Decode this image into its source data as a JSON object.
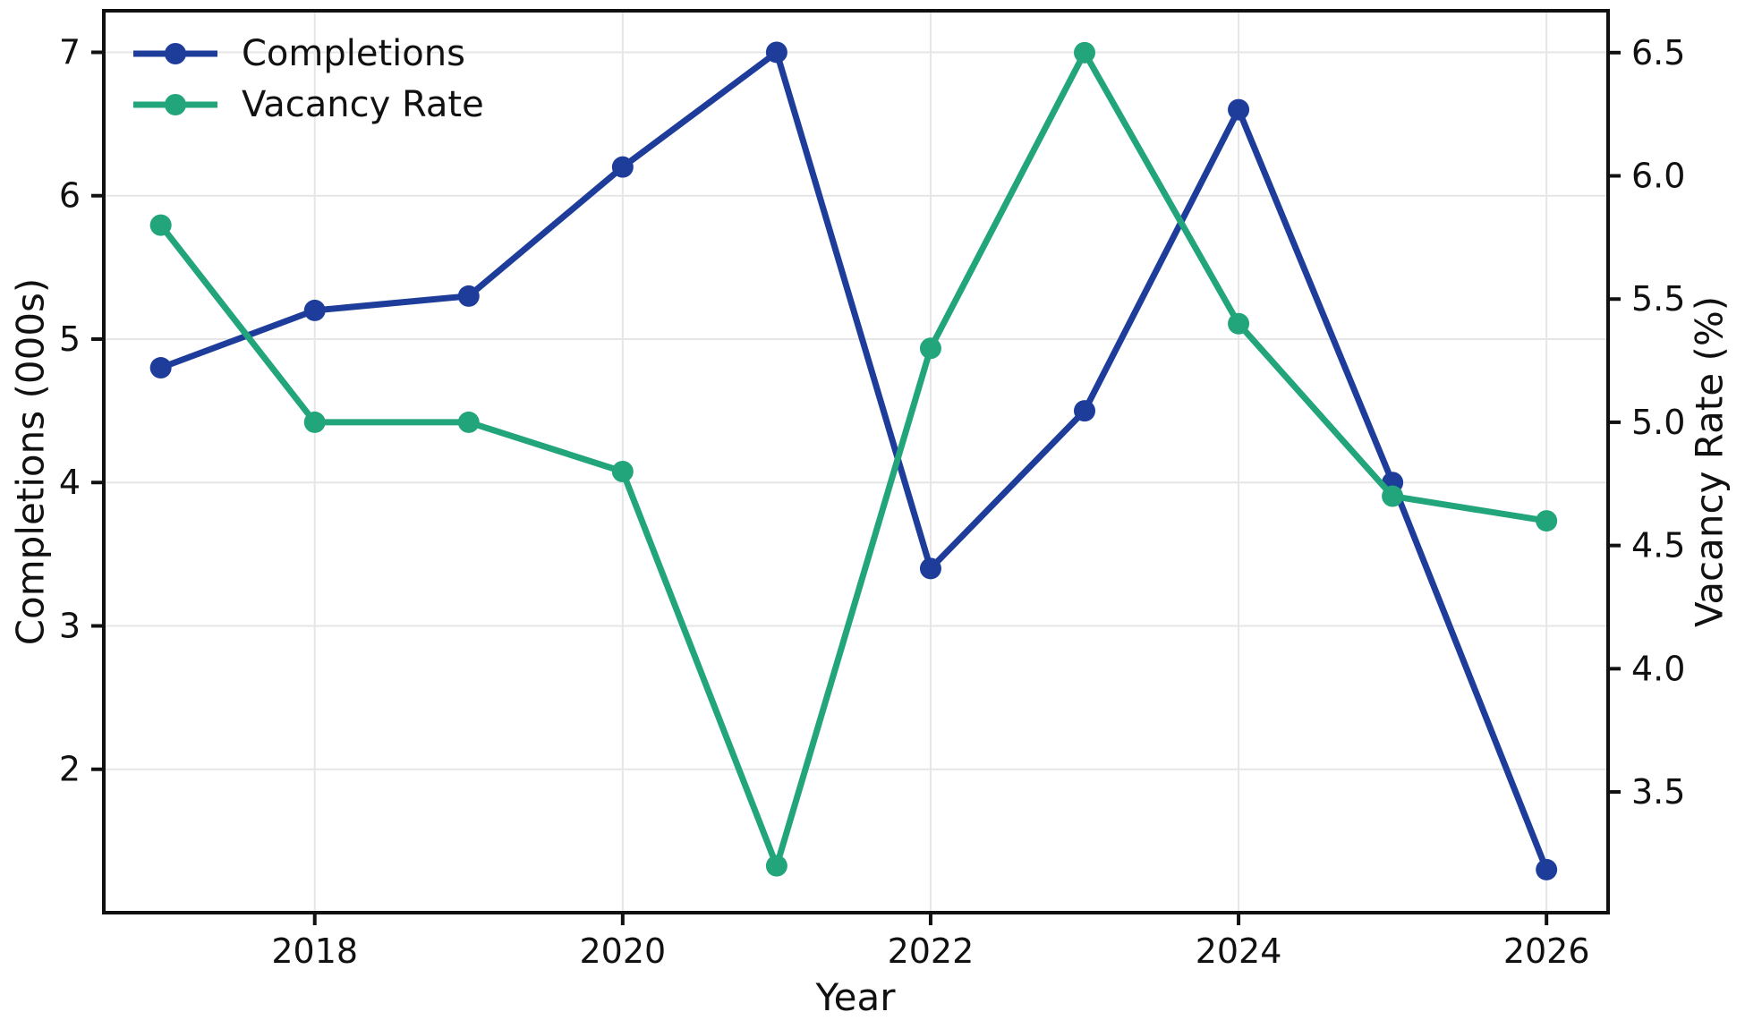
{
  "chart_data": {
    "type": "line",
    "title": "",
    "xlabel": "Year",
    "ylabel_left": "Completions (000s)",
    "ylabel_right": "Vacancy Rate (%)",
    "x": [
      2017,
      2018,
      2019,
      2020,
      2021,
      2022,
      2023,
      2024,
      2025,
      2026
    ],
    "series": [
      {
        "name": "Completions",
        "axis": "left",
        "color": "#1e3d9b",
        "values": [
          4.8,
          5.2,
          5.3,
          6.2,
          7.0,
          3.4,
          4.5,
          6.6,
          4.0,
          1.3
        ]
      },
      {
        "name": "Vacancy Rate",
        "axis": "right",
        "color": "#23a57c",
        "values": [
          5.8,
          5.0,
          5.0,
          4.8,
          3.2,
          5.3,
          6.5,
          5.4,
          4.7,
          4.6
        ]
      }
    ],
    "xlim": [
      2016.63,
      2026.4
    ],
    "ylim_left": [
      1.0,
      7.29
    ],
    "ylim_right": [
      3.01,
      6.67
    ],
    "xticks": [
      2018,
      2020,
      2022,
      2024,
      2026
    ],
    "yticks_left": [
      2,
      3,
      4,
      5,
      6,
      7
    ],
    "yticks_right": [
      3.5,
      4.0,
      4.5,
      5.0,
      5.5,
      6.0,
      6.5
    ],
    "grid": true,
    "legend_position": "upper left",
    "colors": {
      "background": "#ffffff",
      "grid": "#e6e6e6",
      "spine": "#111111",
      "text": "#111111"
    }
  }
}
